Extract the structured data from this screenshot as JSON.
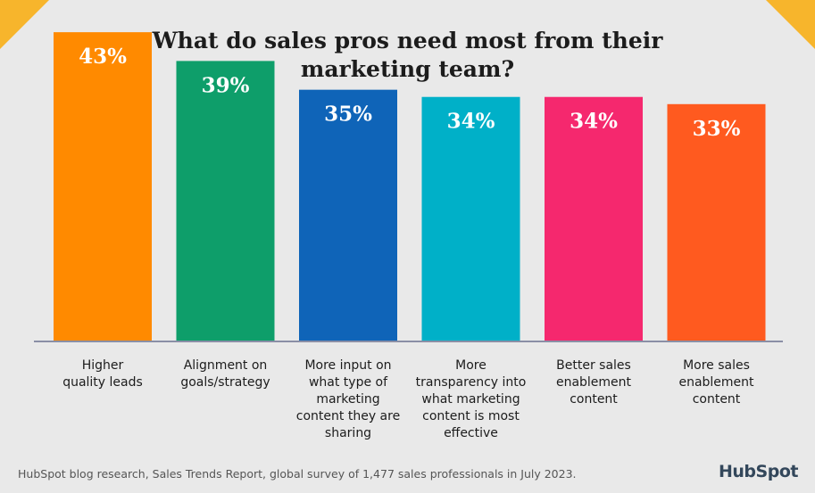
{
  "colors": {
    "background": "#e9e9e9",
    "corner_accent": "#f7b52c",
    "axis": "#8a8fa6",
    "bar_label": "#ffffff",
    "text": "#1c1c1c"
  },
  "footer": {
    "source": "HubSpot blog research, Sales Trends Report, global survey of 1,477 sales professionals in July 2023."
  },
  "logo": {
    "text": "HubSpot"
  },
  "chart_data": {
    "type": "bar",
    "title": "What do sales pros need most from their marketing team?",
    "title_lines": [
      "What do sales pros need most from their",
      "marketing team?"
    ],
    "xlabel": "",
    "ylabel": "",
    "ylim": [
      0,
      45
    ],
    "grid": false,
    "legend": "none",
    "unit": "%",
    "categories": [
      "Higher quality leads",
      "Alignment on goals/strategy",
      "More input on what type of marketing content they are sharing",
      "More transparency into what marketing content is most effective",
      "Better sales enablement content",
      "More sales enablement content"
    ],
    "category_lines": [
      [
        "Higher",
        "quality leads"
      ],
      [
        "Alignment on",
        "goals/strategy"
      ],
      [
        "More input on",
        "what type of",
        "marketing",
        "content they are",
        "sharing"
      ],
      [
        "More",
        "transparency into",
        "what marketing",
        "content is most",
        "effective"
      ],
      [
        "Better sales",
        "enablement",
        "content"
      ],
      [
        "More sales",
        "enablement",
        "content"
      ]
    ],
    "values": [
      43,
      39,
      35,
      34,
      34,
      33
    ],
    "value_labels": [
      "43%",
      "39%",
      "35%",
      "34%",
      "34%",
      "33%"
    ],
    "bar_colors": [
      "#ff8a00",
      "#0e9e6a",
      "#0f64b8",
      "#00b0c8",
      "#f5286e",
      "#ff5a1f"
    ]
  }
}
